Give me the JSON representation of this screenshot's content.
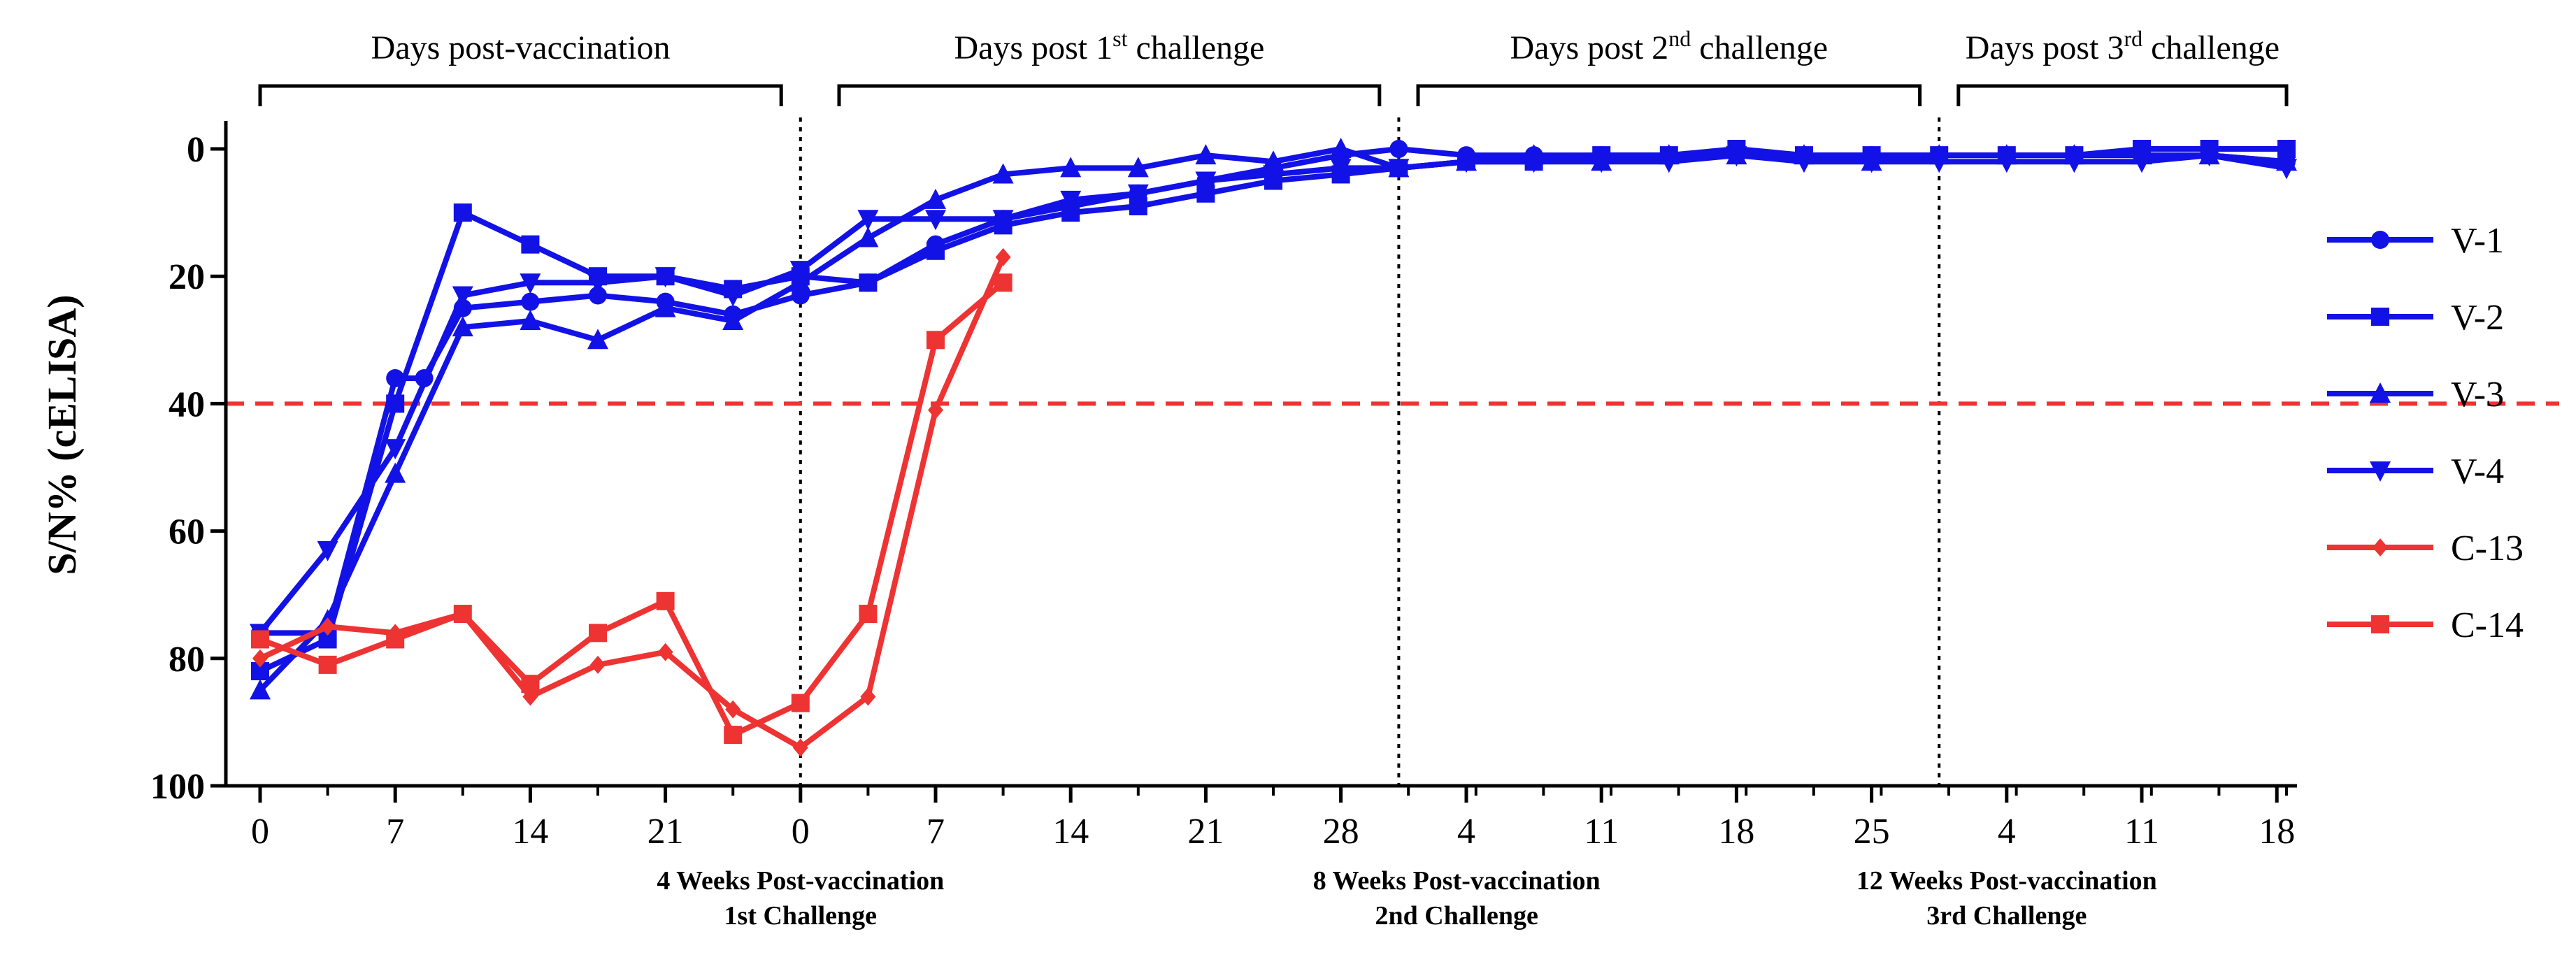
{
  "chart_data": {
    "type": "line",
    "ylabel": "S/N% (cELISA)",
    "ylim": [
      0,
      100
    ],
    "y_inverted": true,
    "yticks": [
      "0",
      "20",
      "40",
      "60",
      "80",
      "100"
    ],
    "ytick_values": [
      0,
      20,
      40,
      60,
      80,
      100
    ],
    "x_sections": [
      {
        "ticks": [
          "0",
          "7",
          "14",
          "21"
        ],
        "tick_days": [
          0,
          7,
          14,
          21
        ]
      },
      {
        "ticks": [
          "0",
          "7",
          "14",
          "21",
          "28"
        ],
        "tick_days": [
          0,
          7,
          14,
          21,
          28
        ]
      },
      {
        "ticks": [
          "4",
          "11",
          "18",
          "25"
        ],
        "tick_days": [
          4,
          11,
          18,
          25
        ]
      },
      {
        "ticks": [
          "4",
          "11",
          "18"
        ],
        "tick_days": [
          4,
          11,
          18
        ]
      }
    ],
    "x_domain": [
      0,
      105
    ],
    "period_labels": [
      {
        "line1": "4 Weeks Post-vaccination",
        "line2": "1st Challenge",
        "x": 28
      },
      {
        "line1": "8 Weeks Post-vaccination",
        "line2": "2nd Challenge",
        "x": 62
      },
      {
        "line1": "12 Weeks Post-vaccination",
        "line2": "3rd Challenge",
        "x": 90.5
      }
    ],
    "brackets": [
      {
        "base": "Days post-vaccination",
        "sup": "",
        "tail": "",
        "x1": 0,
        "x2": 27
      },
      {
        "base": "Days post 1",
        "sup": "st",
        "tail": " challenge",
        "x1": 30,
        "x2": 58
      },
      {
        "base": "Days post 2",
        "sup": "nd",
        "tail": " challenge",
        "x1": 60,
        "x2": 86
      },
      {
        "base": "Days post 3",
        "sup": "rd",
        "tail": " challenge",
        "x1": 88,
        "x2": 105
      }
    ],
    "divider_x": [
      28,
      59,
      87
    ],
    "cutoff": 40,
    "series": [
      {
        "name": "V-1",
        "color": "#1212e6",
        "marker": "circle",
        "x": [
          0,
          3.5,
          7,
          8.5,
          10.5,
          14,
          17.5,
          21,
          24.5,
          28,
          31.5,
          35,
          38.5,
          42,
          45.5,
          49,
          52.5,
          56,
          59,
          62.5,
          66,
          69.5,
          73,
          76.5,
          80,
          83.5,
          87,
          90.5,
          94,
          97.5,
          101,
          105
        ],
        "y": [
          76,
          76,
          36,
          36,
          25,
          24,
          23,
          24,
          26,
          23,
          21,
          15,
          11,
          9,
          7,
          5,
          3,
          1,
          0,
          1,
          1,
          1,
          1,
          1,
          1,
          1,
          1,
          1,
          1,
          1,
          1,
          2
        ]
      },
      {
        "name": "V-2",
        "color": "#1212e6",
        "marker": "square",
        "x": [
          0,
          3.5,
          7,
          10.5,
          14,
          17.5,
          21,
          24.5,
          28,
          31.5,
          35,
          38.5,
          42,
          45.5,
          49,
          52.5,
          56,
          59,
          62.5,
          66,
          69.5,
          73,
          76.5,
          80,
          83.5,
          87,
          90.5,
          94,
          97.5,
          101,
          105
        ],
        "y": [
          82,
          77,
          40,
          10,
          15,
          20,
          20,
          22,
          20,
          21,
          16,
          12,
          10,
          9,
          7,
          5,
          4,
          3,
          2,
          2,
          1,
          1,
          0,
          1,
          1,
          1,
          1,
          1,
          0,
          0,
          0
        ]
      },
      {
        "name": "V-3",
        "color": "#1212e6",
        "marker": "triangle-up",
        "x": [
          0,
          3.5,
          7,
          10.5,
          14,
          17.5,
          21,
          24.5,
          28,
          31.5,
          35,
          38.5,
          42,
          45.5,
          49,
          52.5,
          56,
          59,
          62.5,
          66,
          69.5,
          73,
          76.5,
          80,
          83.5,
          87,
          90.5,
          94,
          97.5,
          101,
          105
        ],
        "y": [
          85,
          74,
          51,
          28,
          27,
          30,
          25,
          27,
          21,
          14,
          8,
          4,
          3,
          3,
          1,
          2,
          0,
          3,
          2,
          1,
          2,
          1,
          1,
          1,
          2,
          1,
          1,
          1,
          1,
          1,
          2
        ]
      },
      {
        "name": "V-4",
        "color": "#1212e6",
        "marker": "triangle-down",
        "x": [
          0,
          3.5,
          7,
          10.5,
          14,
          17.5,
          21,
          24.5,
          28,
          31.5,
          35,
          38.5,
          42,
          45.5,
          49,
          52.5,
          56,
          59,
          62.5,
          66,
          69.5,
          73,
          76.5,
          80,
          83.5,
          87,
          90.5,
          94,
          97.5,
          101,
          105
        ],
        "y": [
          76,
          63,
          47,
          23,
          21,
          21,
          20,
          23,
          19,
          11,
          11,
          11,
          8,
          7,
          5,
          4,
          3,
          3,
          2,
          2,
          2,
          2,
          1,
          2,
          2,
          2,
          2,
          2,
          2,
          1,
          3
        ]
      },
      {
        "name": "C-13",
        "color": "#ee3333",
        "marker": "diamond",
        "x": [
          0,
          3.5,
          7,
          10.5,
          14,
          17.5,
          21,
          24.5,
          28,
          31.5,
          35,
          38.5
        ],
        "y": [
          80,
          75,
          76,
          73,
          86,
          81,
          79,
          88,
          94,
          86,
          41,
          17
        ]
      },
      {
        "name": "C-14",
        "color": "#ee3333",
        "marker": "square",
        "x": [
          0,
          3.5,
          7,
          10.5,
          14,
          17.5,
          21,
          24.5,
          28,
          31.5,
          35,
          38.5
        ],
        "y": [
          77,
          81,
          77,
          73,
          84,
          76,
          71,
          92,
          87,
          73,
          30,
          21
        ]
      }
    ]
  }
}
